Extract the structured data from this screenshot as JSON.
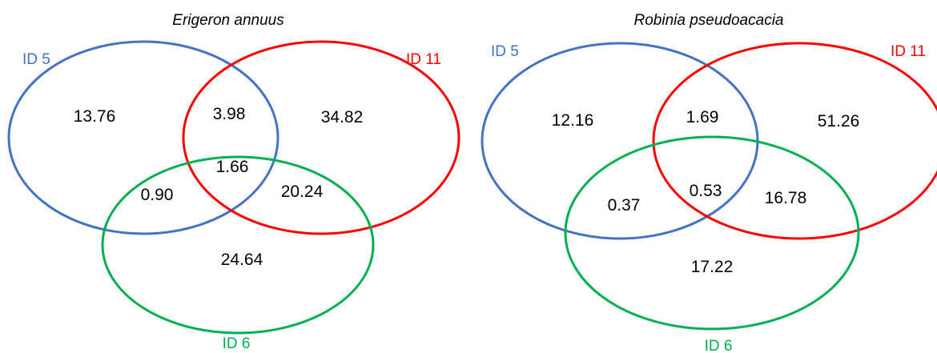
{
  "colors": {
    "id5": "#4472C4",
    "id11": "#FF0000",
    "id6": "#00B050"
  },
  "panels": [
    {
      "title": "Erigeron annuus",
      "labels": {
        "id5": "ID 5",
        "id11": "ID 11",
        "id6": "ID 6"
      },
      "regions": {
        "id5_only": "13.76",
        "id5_id11": "3.98",
        "id11_only": "34.82",
        "all": "1.66",
        "id5_id6": "0.90",
        "id11_id6": "20.24",
        "id6_only": "24.64"
      }
    },
    {
      "title": "Robinia pseudoacacia",
      "labels": {
        "id5": "ID 5",
        "id11": "ID 11",
        "id6": "ID 6"
      },
      "regions": {
        "id5_only": "12.16",
        "id5_id11": "1.69",
        "id11_only": "51.26",
        "all": "0.53",
        "id5_id6": "0.37",
        "id11_id6": "16.78",
        "id6_only": "17.22"
      }
    }
  ]
}
